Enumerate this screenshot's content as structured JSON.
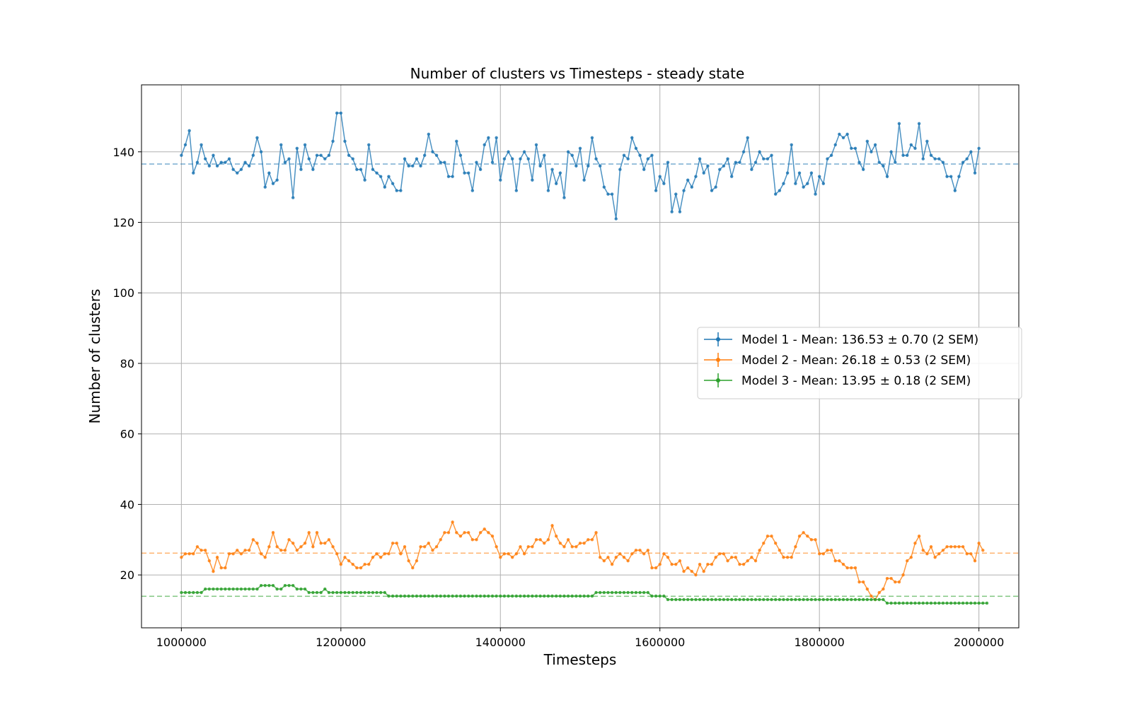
{
  "chart_data": {
    "type": "line",
    "title": "Number of clusters vs Timesteps - steady state",
    "xlabel": "Timesteps",
    "ylabel": "Number of clusters",
    "xlim": [
      950000,
      2050000
    ],
    "ylim": [
      5,
      159
    ],
    "xticks": [
      1000000,
      1200000,
      1400000,
      1600000,
      1800000,
      2000000
    ],
    "yticks": [
      20,
      40,
      60,
      80,
      100,
      120,
      140
    ],
    "grid": true,
    "legend_position": "center-right",
    "x_start": 1000000,
    "x_step": 5000,
    "series": [
      {
        "name": "Model 1 - Mean: 136.53 ± 0.70 (2 SEM)",
        "color": "#1f77b4",
        "mean": 136.53,
        "values": [
          139,
          142,
          146,
          134,
          137,
          142,
          138,
          136,
          139,
          136,
          137,
          137,
          138,
          135,
          134,
          135,
          137,
          136,
          139,
          144,
          140,
          130,
          134,
          131,
          132,
          142,
          137,
          138,
          127,
          141,
          135,
          142,
          138,
          135,
          139,
          139,
          138,
          139,
          143,
          151,
          151,
          143,
          139,
          138,
          135,
          135,
          132,
          142,
          135,
          134,
          133,
          130,
          133,
          131,
          129,
          129,
          138,
          136,
          136,
          138,
          136,
          139,
          145,
          140,
          139,
          137,
          137,
          133,
          133,
          143,
          139,
          134,
          134,
          129,
          137,
          135,
          142,
          144,
          137,
          144,
          132,
          138,
          140,
          138,
          129,
          138,
          140,
          138,
          132,
          142,
          136,
          139,
          129,
          135,
          131,
          134,
          127,
          140,
          139,
          136,
          141,
          132,
          136,
          144,
          138,
          136,
          130,
          128,
          128,
          121,
          135,
          139,
          138,
          144,
          141,
          139,
          135,
          138,
          139,
          129,
          133,
          131,
          137,
          123,
          128,
          123,
          129,
          132,
          130,
          133,
          138,
          134,
          136,
          129,
          130,
          135,
          136,
          138,
          133,
          137,
          137,
          140,
          144,
          135,
          137,
          140,
          138,
          138,
          139,
          128,
          129,
          131,
          134,
          142,
          131,
          134,
          130,
          131,
          134,
          128,
          133,
          131,
          138,
          139,
          142,
          145,
          144,
          145,
          141,
          141,
          137,
          135,
          143,
          140,
          142,
          137,
          136,
          133,
          140,
          137,
          148,
          139,
          139,
          142,
          141,
          148,
          138,
          143,
          139,
          138,
          138,
          137,
          133,
          133,
          129,
          133,
          137,
          138,
          140,
          134,
          141
        ]
      },
      {
        "name": "Model 2 - Mean: 26.18 ± 0.53 (2 SEM)",
        "color": "#ff7f0e",
        "mean": 26.18,
        "values": [
          25,
          26,
          26,
          26,
          28,
          27,
          27,
          24,
          21,
          25,
          22,
          22,
          26,
          26,
          27,
          26,
          27,
          27,
          30,
          29,
          26,
          25,
          28,
          32,
          28,
          27,
          27,
          30,
          29,
          27,
          28,
          29,
          32,
          28,
          32,
          29,
          29,
          30,
          28,
          26,
          23,
          25,
          24,
          23,
          22,
          22,
          23,
          23,
          25,
          26,
          25,
          26,
          26,
          29,
          29,
          26,
          28,
          24,
          22,
          24,
          28,
          28,
          29,
          27,
          28,
          30,
          32,
          32,
          35,
          32,
          31,
          32,
          32,
          30,
          30,
          32,
          33,
          32,
          31,
          28,
          25,
          26,
          26,
          25,
          26,
          28,
          26,
          28,
          28,
          30,
          30,
          29,
          30,
          34,
          31,
          29,
          28,
          30,
          28,
          28,
          29,
          29,
          30,
          30,
          32,
          25,
          24,
          25,
          23,
          25,
          26,
          25,
          24,
          26,
          27,
          27,
          26,
          27,
          22,
          22,
          23,
          26,
          25,
          23,
          23,
          24,
          21,
          22,
          21,
          20,
          23,
          21,
          23,
          23,
          25,
          26,
          26,
          24,
          25,
          25,
          23,
          23,
          24,
          25,
          24,
          27,
          29,
          31,
          31,
          29,
          27,
          25,
          25,
          25,
          28,
          31,
          32,
          31,
          30,
          30,
          26,
          26,
          27,
          27,
          24,
          24,
          23,
          22,
          22,
          22,
          18,
          18,
          16,
          14,
          13,
          15,
          16,
          19,
          19,
          18,
          18,
          20,
          24,
          25,
          29,
          31,
          27,
          26,
          28,
          25,
          26,
          27,
          28,
          28,
          28,
          28,
          28,
          26,
          26,
          24,
          29,
          27
        ]
      },
      {
        "name": "Model 3 - Mean: 13.95 ± 0.18 (2 SEM)",
        "color": "#2ca02c",
        "mean": 13.95,
        "values": [
          15,
          15,
          15,
          15,
          15,
          15,
          16,
          16,
          16,
          16,
          16,
          16,
          16,
          16,
          16,
          16,
          16,
          16,
          16,
          16,
          17,
          17,
          17,
          17,
          16,
          16,
          17,
          17,
          17,
          16,
          16,
          16,
          15,
          15,
          15,
          15,
          16,
          15,
          15,
          15,
          15,
          15,
          15,
          15,
          15,
          15,
          15,
          15,
          15,
          15,
          15,
          15,
          14,
          14,
          14,
          14,
          14,
          14,
          14,
          14,
          14,
          14,
          14,
          14,
          14,
          14,
          14,
          14,
          14,
          14,
          14,
          14,
          14,
          14,
          14,
          14,
          14,
          14,
          14,
          14,
          14,
          14,
          14,
          14,
          14,
          14,
          14,
          14,
          14,
          14,
          14,
          14,
          14,
          14,
          14,
          14,
          14,
          14,
          14,
          14,
          14,
          14,
          14,
          14,
          15,
          15,
          15,
          15,
          15,
          15,
          15,
          15,
          15,
          15,
          15,
          15,
          15,
          15,
          14,
          14,
          14,
          14,
          13,
          13,
          13,
          13,
          13,
          13,
          13,
          13,
          13,
          13,
          13,
          13,
          13,
          13,
          13,
          13,
          13,
          13,
          13,
          13,
          13,
          13,
          13,
          13,
          13,
          13,
          13,
          13,
          13,
          13,
          13,
          13,
          13,
          13,
          13,
          13,
          13,
          13,
          13,
          13,
          13,
          13,
          13,
          13,
          13,
          13,
          13,
          13,
          13,
          13,
          13,
          13,
          13,
          13,
          13,
          12,
          12,
          12,
          12,
          12,
          12,
          12,
          12,
          12,
          12,
          12,
          12,
          12,
          12,
          12,
          12,
          12,
          12,
          12,
          12,
          12,
          12,
          12,
          12,
          12,
          12
        ]
      }
    ]
  }
}
